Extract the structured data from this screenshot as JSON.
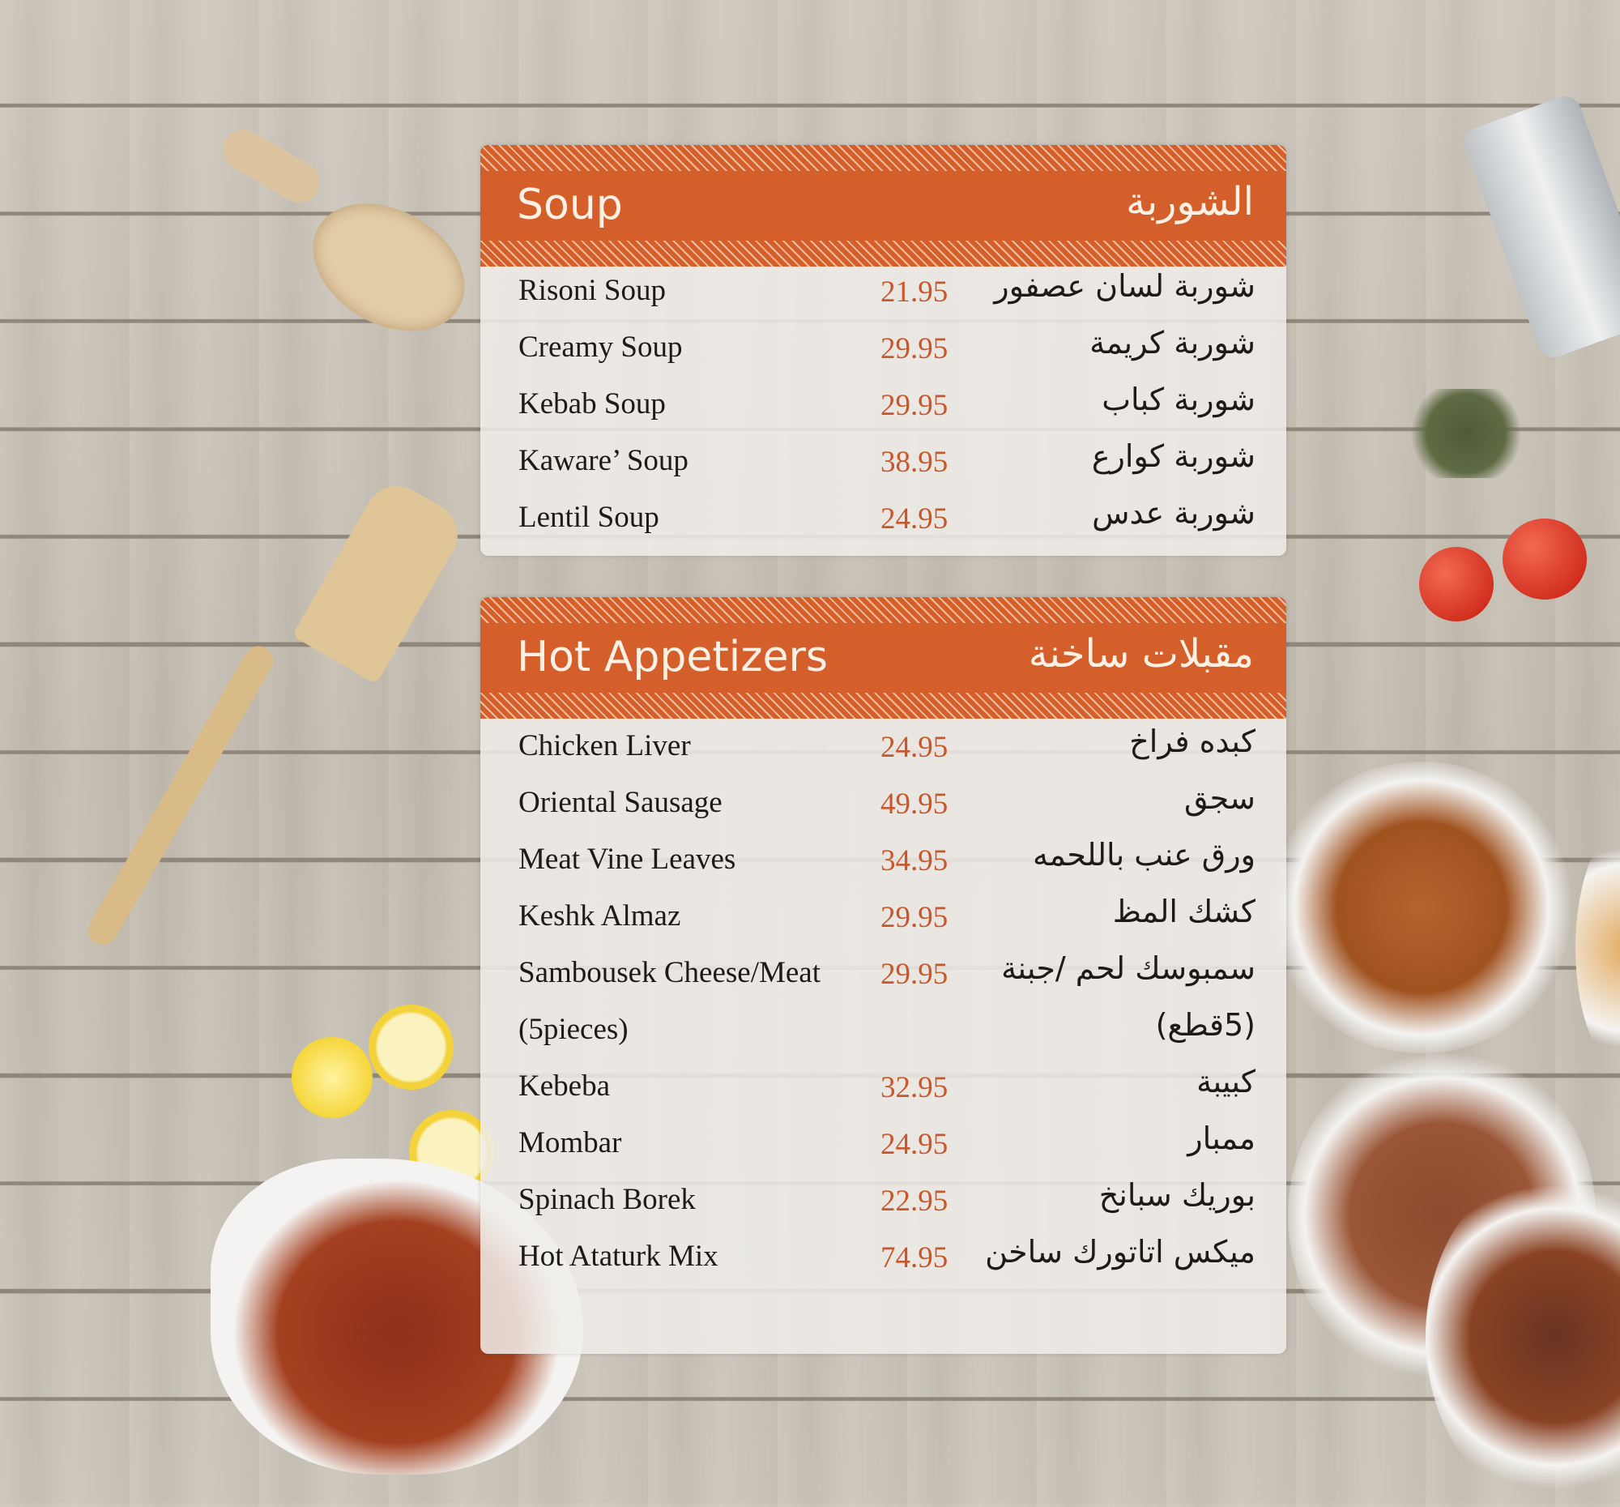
{
  "colors": {
    "accent": "#d55f2a",
    "price": "#c8582c",
    "text": "#1e1a17",
    "background": "#c9c3b8"
  },
  "sections": [
    {
      "title_en": "Soup",
      "title_ar": "الشوربة",
      "items": [
        {
          "name_en": "Risoni Soup",
          "price": "21.95",
          "name_ar": "شوربة لسان عصفور"
        },
        {
          "name_en": "Creamy Soup",
          "price": "29.95",
          "name_ar": "شوربة كريمة"
        },
        {
          "name_en": "Kebab Soup",
          "price": "29.95",
          "name_ar": "شوربة كباب"
        },
        {
          "name_en": "Kaware’ Soup",
          "price": "38.95",
          "name_ar": "شوربة كوارع"
        },
        {
          "name_en": "Lentil Soup",
          "price": "24.95",
          "name_ar": "شوربة عدس"
        }
      ]
    },
    {
      "title_en": "Hot Appetizers",
      "title_ar": "مقبلات ساخنة",
      "items": [
        {
          "name_en": "Chicken Liver",
          "price": "24.95",
          "name_ar": "كبده فراخ"
        },
        {
          "name_en": "Oriental Sausage",
          "price": "49.95",
          "name_ar": "سجق"
        },
        {
          "name_en": "Meat Vine Leaves",
          "price": "34.95",
          "name_ar": "ورق عنب باللحمه"
        },
        {
          "name_en": "Keshk Almaz",
          "price": "29.95",
          "name_ar": "كشك المظ"
        },
        {
          "name_en": "Sambousek Cheese/Meat",
          "price": "29.95",
          "name_ar": "سمبوسك لحم /جبنة"
        },
        {
          "name_en": "(5pieces)",
          "price": "",
          "name_ar": "(5قطع)"
        },
        {
          "name_en": "Kebeba",
          "price": "32.95",
          "name_ar": "كبيبة"
        },
        {
          "name_en": "Mombar",
          "price": "24.95",
          "name_ar": "ممبار"
        },
        {
          "name_en": "Spinach Borek",
          "price": "22.95",
          "name_ar": "بوريك سبانخ"
        },
        {
          "name_en": "Hot Ataturk Mix",
          "price": "74.95",
          "name_ar": "ميكس اتاتورك ساخن"
        }
      ]
    }
  ]
}
